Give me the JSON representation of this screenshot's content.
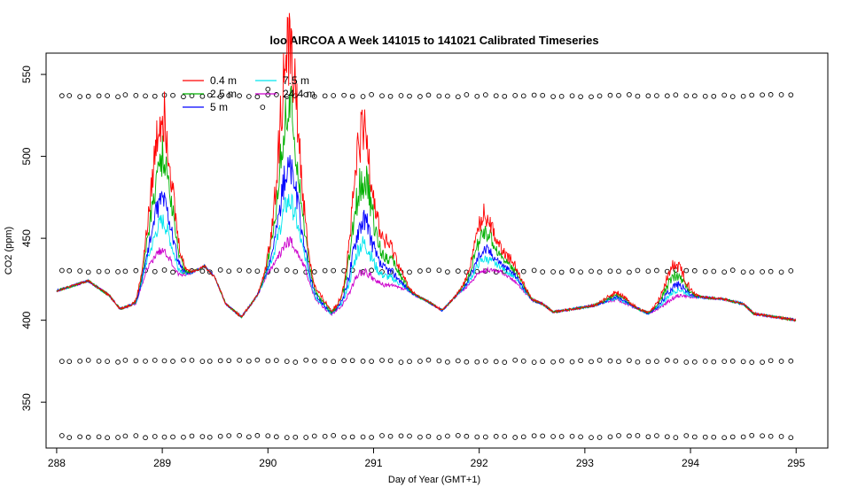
{
  "chart_data": {
    "type": "line",
    "title": "loo AIRCOA A  Week 141015 to 141021  Calibrated Timeseries",
    "xlabel": "Day of Year (GMT+1)",
    "ylabel": "CO2 (ppm)",
    "xlim": [
      287.9,
      295.3
    ],
    "ylim": [
      322,
      563
    ],
    "x_ticks": [
      288,
      289,
      290,
      291,
      292,
      293,
      294,
      295
    ],
    "y_ticks": [
      350,
      400,
      450,
      500,
      550
    ],
    "grid": false,
    "legend_position": "top-left",
    "series": [
      {
        "name": "0.4 m",
        "color": "#ff0000",
        "offset": 1.0
      },
      {
        "name": "2.5 m",
        "color": "#00b000",
        "offset": 0.72
      },
      {
        "name": "5 m",
        "color": "#0000ff",
        "offset": 0.45
      },
      {
        "name": "7.5 m",
        "color": "#00e5ee",
        "offset": 0.3
      },
      {
        "name": "24.4 m",
        "color": "#cc00cc",
        "offset": 0.12
      }
    ],
    "baseline_points": [
      [
        288.0,
        418
      ],
      [
        288.3,
        424
      ],
      [
        288.5,
        415
      ],
      [
        288.6,
        407
      ],
      [
        288.75,
        410
      ],
      [
        288.85,
        428
      ],
      [
        289.0,
        432
      ],
      [
        289.15,
        425
      ],
      [
        289.25,
        428
      ],
      [
        289.4,
        433
      ],
      [
        289.5,
        426
      ],
      [
        289.6,
        410
      ],
      [
        289.75,
        402
      ],
      [
        289.9,
        415
      ],
      [
        290.0,
        428
      ],
      [
        290.2,
        432
      ],
      [
        290.35,
        428
      ],
      [
        290.45,
        412
      ],
      [
        290.6,
        403
      ],
      [
        290.7,
        408
      ],
      [
        290.85,
        418
      ],
      [
        291.0,
        418
      ],
      [
        291.3,
        418
      ],
      [
        291.5,
        412
      ],
      [
        291.65,
        406
      ],
      [
        291.8,
        416
      ],
      [
        292.0,
        425
      ],
      [
        292.2,
        428
      ],
      [
        292.35,
        422
      ],
      [
        292.5,
        412
      ],
      [
        292.6,
        410
      ],
      [
        292.7,
        405
      ],
      [
        292.9,
        407
      ],
      [
        293.1,
        409
      ],
      [
        293.3,
        412
      ],
      [
        293.5,
        407
      ],
      [
        293.6,
        404
      ],
      [
        293.75,
        408
      ],
      [
        293.9,
        413
      ],
      [
        294.1,
        414
      ],
      [
        294.3,
        413
      ],
      [
        294.5,
        410
      ],
      [
        294.6,
        404
      ],
      [
        294.8,
        402
      ],
      [
        295.0,
        400
      ]
    ],
    "event_peaks": [
      [
        289.0,
        95
      ],
      [
        290.2,
        135
      ],
      [
        290.5,
        5
      ],
      [
        290.9,
        95
      ],
      [
        291.15,
        25
      ],
      [
        292.05,
        38
      ],
      [
        292.3,
        12
      ],
      [
        293.3,
        5
      ],
      [
        293.85,
        22
      ]
    ],
    "calibration_levels": [
      537,
      430,
      375,
      329
    ],
    "calibration_x": [
      288.05,
      288.12,
      288.22,
      288.3,
      288.4,
      288.48,
      288.58,
      288.65,
      288.75,
      288.84,
      288.93,
      289.02,
      289.1,
      289.2,
      289.28,
      289.38,
      289.45,
      289.55,
      289.63,
      289.73,
      289.82,
      289.9,
      290.0,
      290.08,
      290.18,
      290.26,
      290.36,
      290.44,
      290.54,
      290.62,
      290.72,
      290.8,
      290.9,
      290.98,
      291.08,
      291.16,
      291.26,
      291.34,
      291.44,
      291.52,
      291.62,
      291.7,
      291.8,
      291.88,
      291.98,
      292.06,
      292.16,
      292.24,
      292.34,
      292.42,
      292.52,
      292.6,
      292.7,
      292.78,
      292.88,
      292.96,
      293.06,
      293.14,
      293.24,
      293.32,
      293.42,
      293.5,
      293.6,
      293.68,
      293.78,
      293.86,
      293.96,
      294.04,
      294.14,
      294.22,
      294.32,
      294.4,
      294.5,
      294.58,
      294.68,
      294.76,
      294.86,
      294.95
    ],
    "extra_points": [
      [
        290.0,
        541
      ],
      [
        289.95,
        530
      ]
    ]
  }
}
